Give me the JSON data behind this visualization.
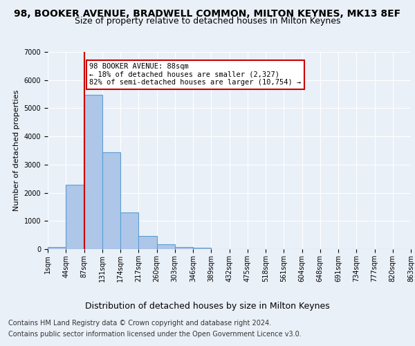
{
  "title1": "98, BOOKER AVENUE, BRADWELL COMMON, MILTON KEYNES, MK13 8EF",
  "title2": "Size of property relative to detached houses in Milton Keynes",
  "xlabel": "Distribution of detached houses by size in Milton Keynes",
  "ylabel": "Number of detached properties",
  "footer1": "Contains HM Land Registry data © Crown copyright and database right 2024.",
  "footer2": "Contains public sector information licensed under the Open Government Licence v3.0.",
  "bar_values": [
    75,
    2280,
    5480,
    3440,
    1310,
    460,
    160,
    85,
    55,
    0,
    0,
    0,
    0,
    0,
    0,
    0,
    0,
    0,
    0,
    0
  ],
  "x_labels": [
    "1sqm",
    "44sqm",
    "87sqm",
    "131sqm",
    "174sqm",
    "217sqm",
    "260sqm",
    "303sqm",
    "346sqm",
    "389sqm",
    "432sqm",
    "475sqm",
    "518sqm",
    "561sqm",
    "604sqm",
    "648sqm",
    "691sqm",
    "734sqm",
    "777sqm",
    "820sqm",
    "863sqm"
  ],
  "bar_color": "#aec6e8",
  "bar_edge_color": "#5a9fd4",
  "vline_color": "#cc0000",
  "annotation_text": "98 BOOKER AVENUE: 88sqm\n← 18% of detached houses are smaller (2,327)\n82% of semi-detached houses are larger (10,754) →",
  "annotation_box_color": "white",
  "annotation_box_edge_color": "#cc0000",
  "ylim": [
    0,
    7000
  ],
  "yticks": [
    0,
    1000,
    2000,
    3000,
    4000,
    5000,
    6000,
    7000
  ],
  "background_color": "#eaf0f8",
  "grid_color": "#ffffff",
  "title1_fontsize": 10,
  "title2_fontsize": 9,
  "ylabel_fontsize": 8,
  "xlabel_fontsize": 9,
  "footer_fontsize": 7,
  "tick_fontsize": 7,
  "annotation_fontsize": 7.5
}
